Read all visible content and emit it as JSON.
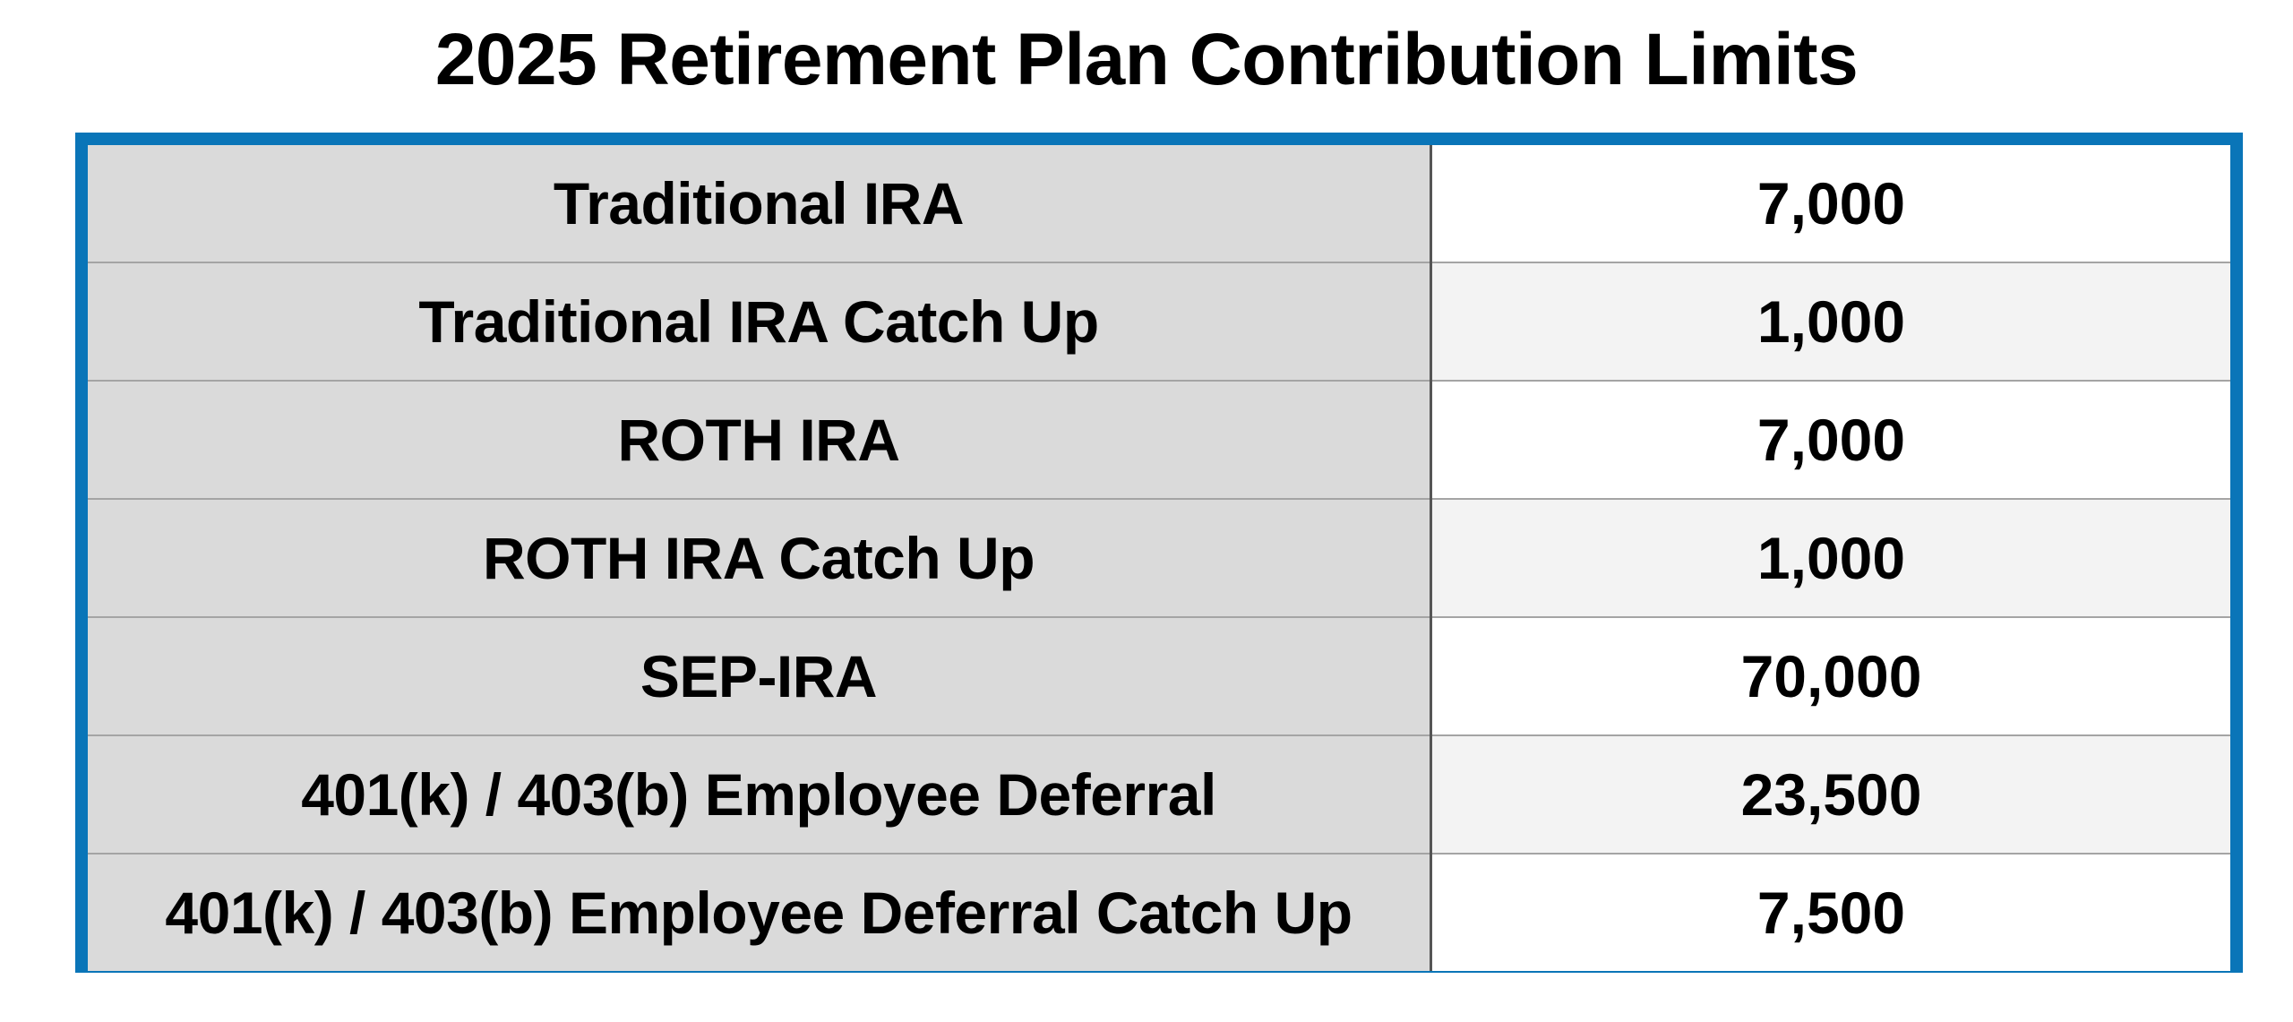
{
  "title": "2025 Retirement Plan Contribution Limits",
  "colors": {
    "border": "#0a75b8",
    "label_cell_bg": "#dadada",
    "value_cell_bg": "#ffffff",
    "value_cell_alt_bg": "#f3f3f3"
  },
  "chart_data": {
    "type": "table",
    "title": "2025 Retirement Plan Contribution Limits",
    "rows": [
      {
        "label": "Traditional IRA",
        "value": "7,000"
      },
      {
        "label": "Traditional IRA Catch Up",
        "value": "1,000"
      },
      {
        "label": "ROTH IRA",
        "value": "7,000"
      },
      {
        "label": "ROTH IRA Catch Up",
        "value": "1,000"
      },
      {
        "label": "SEP-IRA",
        "value": "70,000"
      },
      {
        "label": "401(k) / 403(b) Employee Deferral",
        "value": "23,500"
      },
      {
        "label": "401(k) / 403(b) Employee Deferral Catch Up",
        "value": "7,500"
      }
    ]
  }
}
